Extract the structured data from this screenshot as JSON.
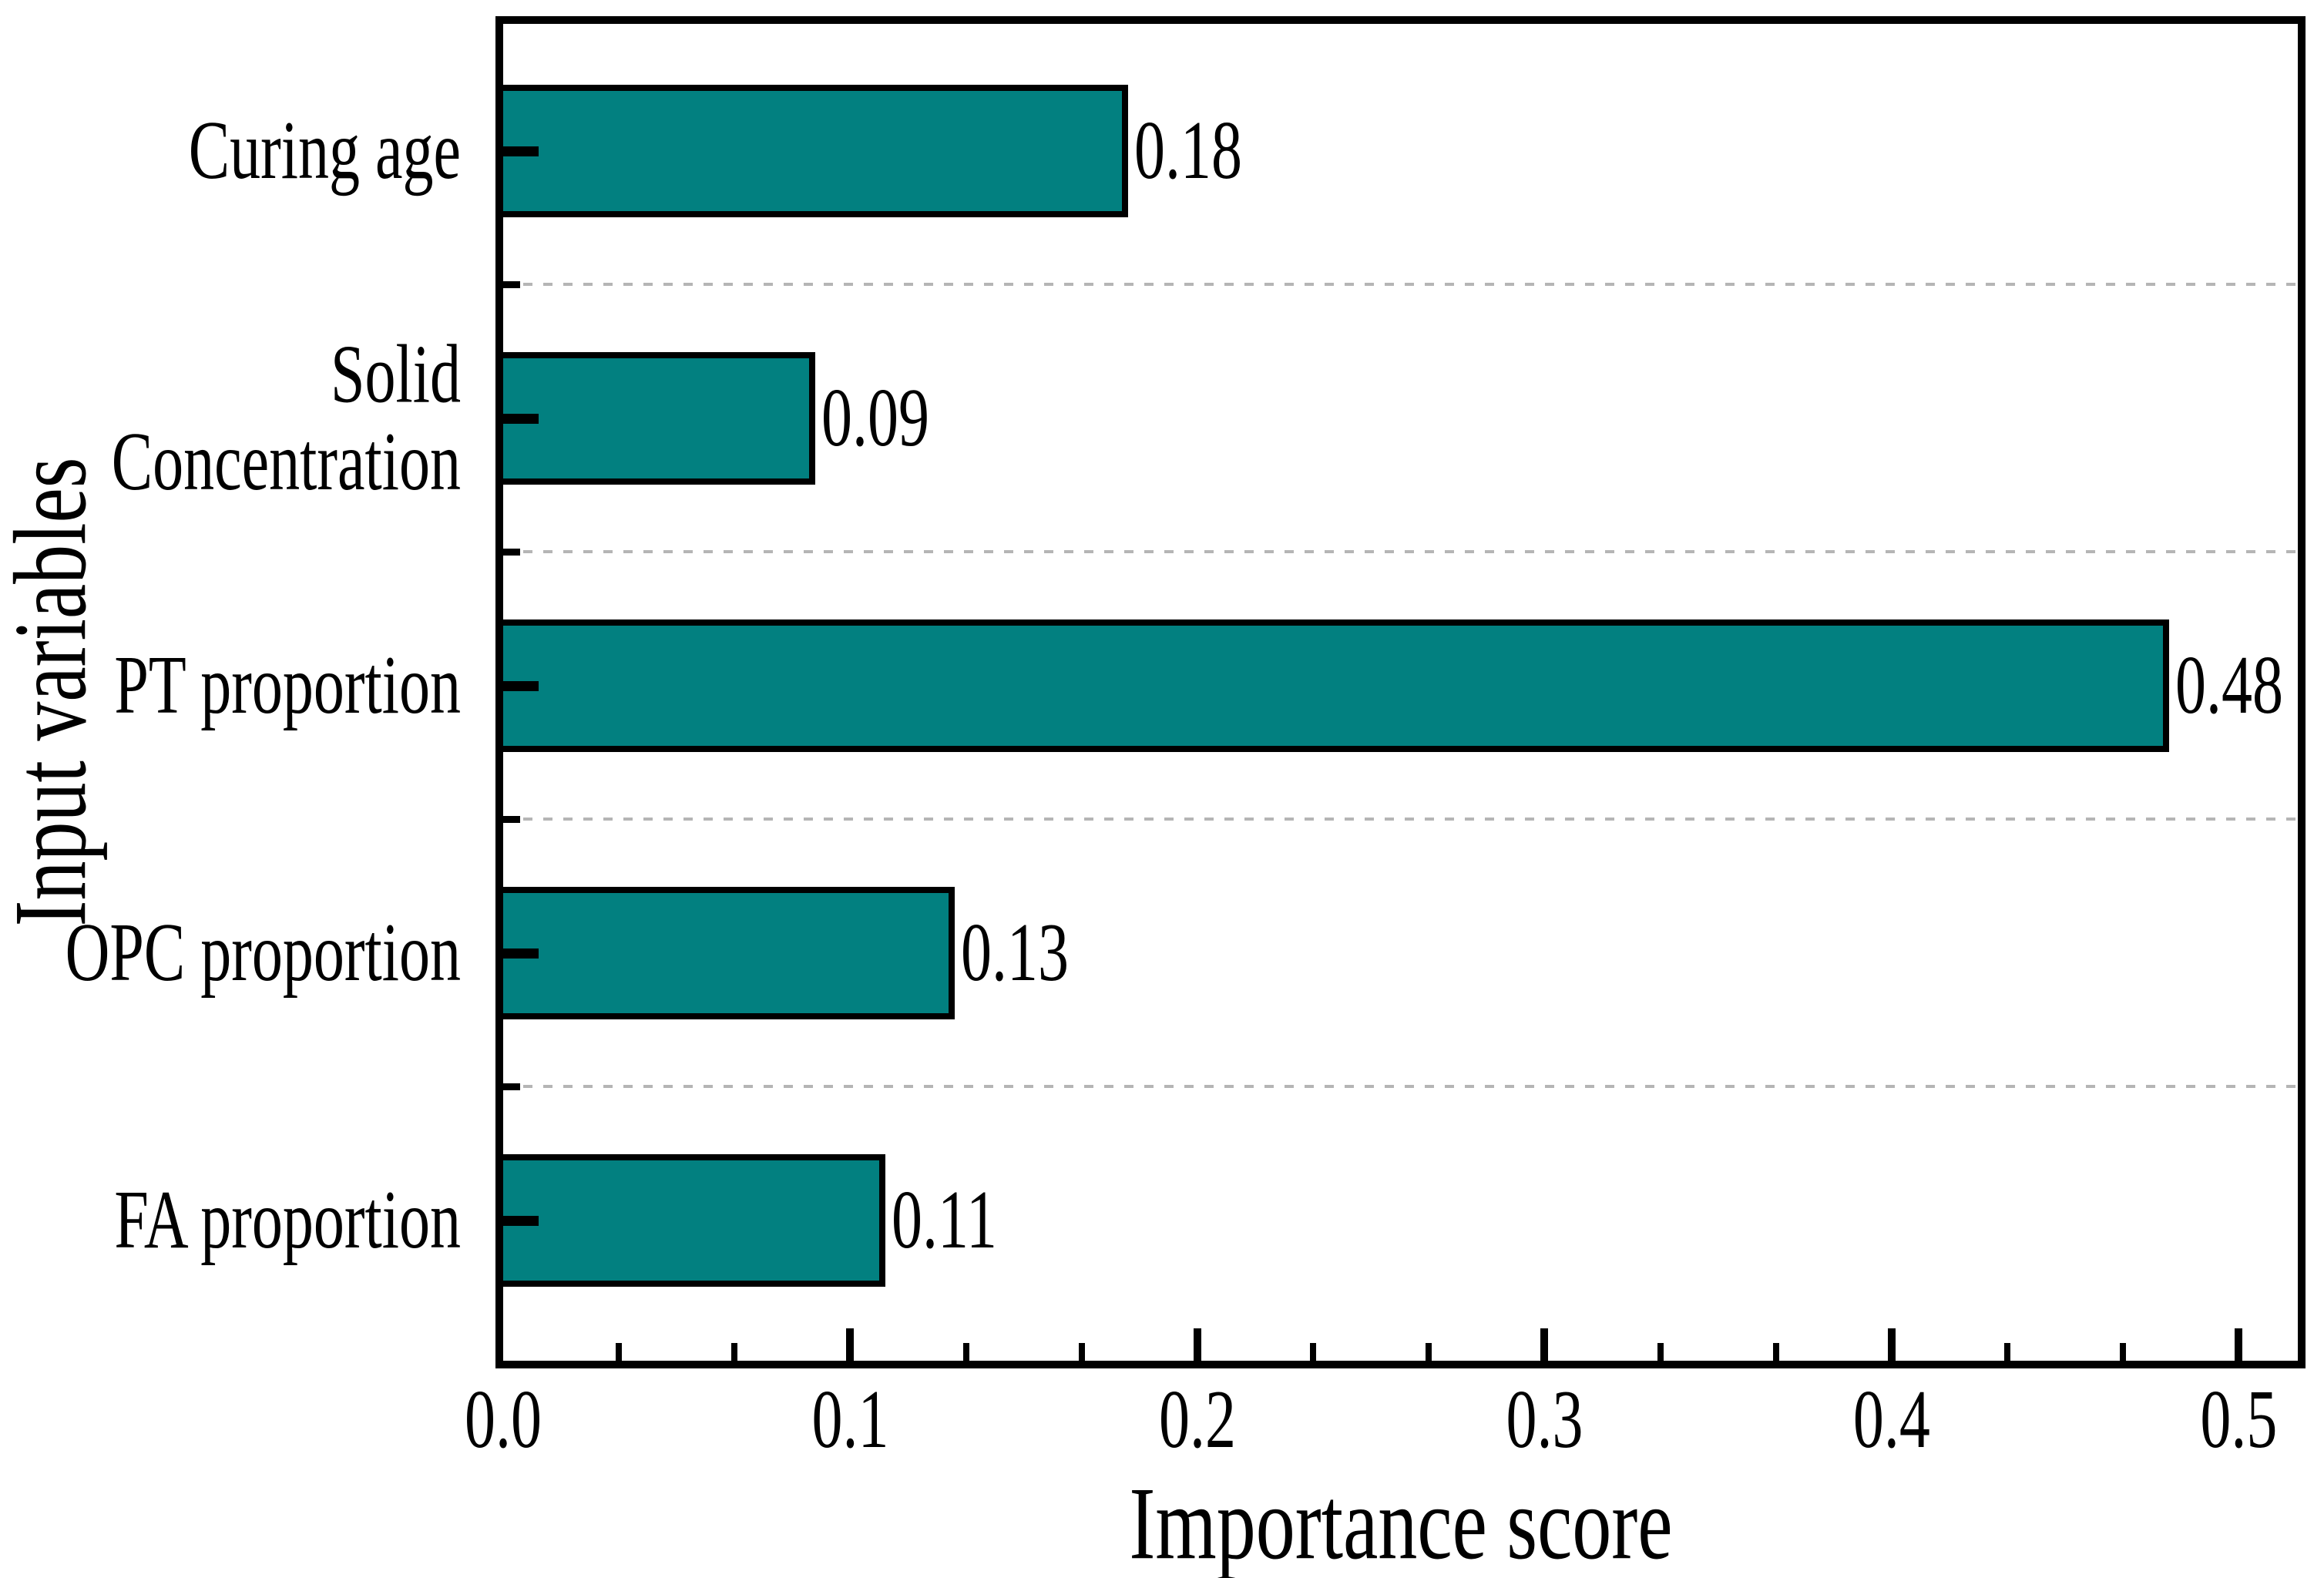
{
  "chart_data": {
    "type": "bar",
    "orientation": "horizontal",
    "title": "",
    "xlabel": "Importance score",
    "ylabel": "Input variables",
    "categories": [
      "Curing age",
      "Solid Concentration",
      "PT proportion",
      "OPC proportion",
      "FA proportion"
    ],
    "values": [
      0.18,
      0.09,
      0.48,
      0.13,
      0.11
    ],
    "value_labels": [
      "0.18",
      "0.09",
      "0.48",
      "0.13",
      "0.11"
    ],
    "xticks": [
      "0.0",
      "0.1",
      "0.2",
      "0.3",
      "0.4",
      "0.5"
    ],
    "xtick_values": [
      0.0,
      0.1,
      0.2,
      0.3,
      0.4,
      0.5
    ],
    "minor_xtick_step": 0.03333,
    "xlim": [
      0.0,
      0.517
    ],
    "grid": "horizontal dashed lines between category slots",
    "legend_position": "none",
    "bar_color": "#028080",
    "bar_border_color": "#000000",
    "gridline_color": "#b5b5b5",
    "axis_color": "#000000",
    "text_color": "#000000",
    "background_color": "#ffffff"
  }
}
